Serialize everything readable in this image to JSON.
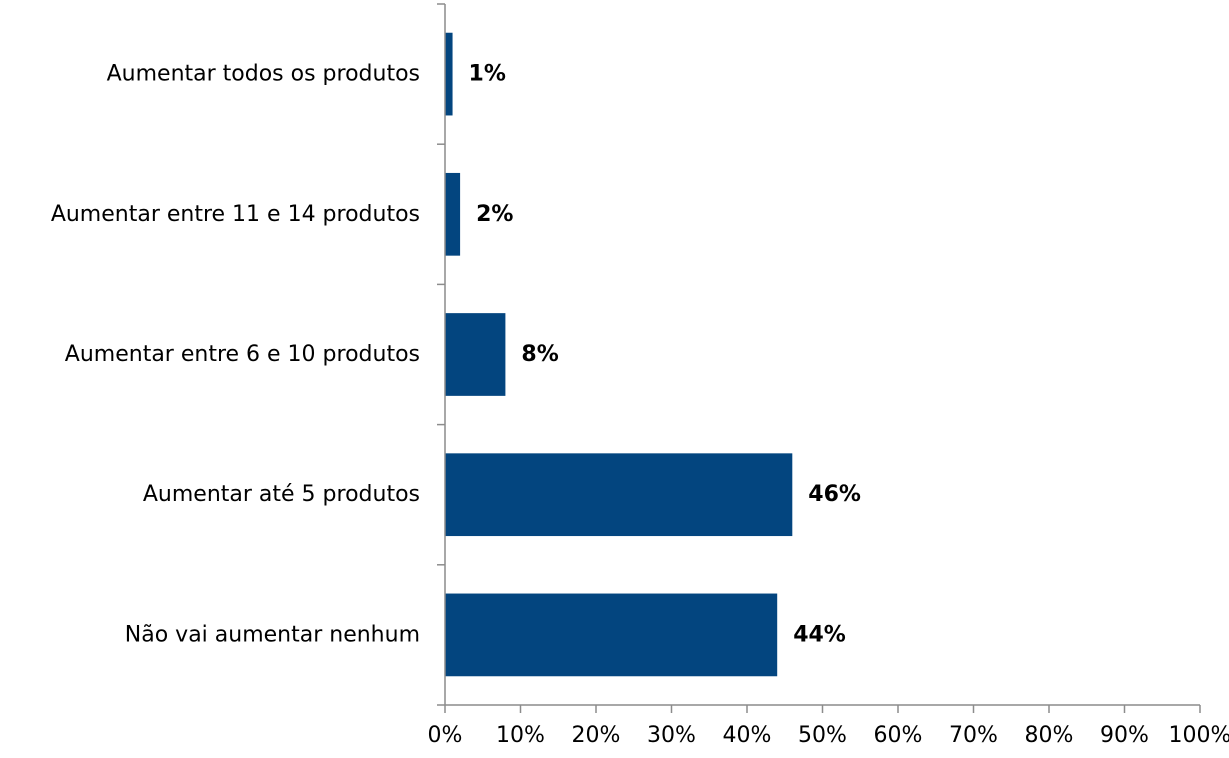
{
  "chart_data": {
    "type": "bar",
    "orientation": "horizontal",
    "categories": [
      "Aumentar todos os produtos",
      "Aumentar entre 11 e 14 produtos",
      "Aumentar entre 6 e 10 produtos",
      "Aumentar até 5 produtos",
      "Não vai aumentar nenhum"
    ],
    "values": [
      1,
      2,
      8,
      46,
      44
    ],
    "data_labels": [
      "1%",
      "2%",
      "8%",
      "46%",
      "44%"
    ],
    "x_ticks": [
      "0%",
      "10%",
      "20%",
      "30%",
      "40%",
      "50%",
      "60%",
      "70%",
      "80%",
      "90%",
      "100%"
    ],
    "xlim": [
      0,
      100
    ],
    "title": "",
    "xlabel": "",
    "ylabel": "",
    "grid": false,
    "legend": "none",
    "bar_color": "#03457f"
  }
}
